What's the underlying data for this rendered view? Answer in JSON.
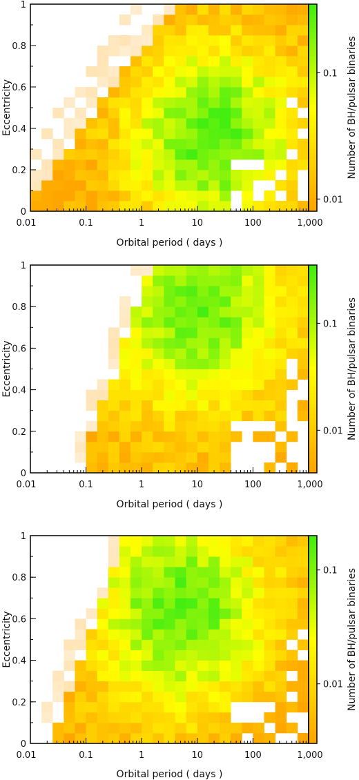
{
  "figure": {
    "xlabel": "Orbital period ( days )",
    "ylabel": "Eccentricity",
    "colorbar_label": "Number of BH/pulsar binaries"
  },
  "colors": {
    "low": "#ffa500",
    "mid": "#ffff00",
    "high": "#44ee11",
    "faint": "#fff6e8"
  },
  "chart_data": [
    {
      "type": "heatmap",
      "x_scale": "log",
      "x_range": [
        0.01,
        1000
      ],
      "x_ticks": [
        0.01,
        0.1,
        1,
        10,
        100,
        1000
      ],
      "x_tick_labels": [
        "0.01",
        "0.1",
        "1",
        "10",
        "100",
        "1,000"
      ],
      "y_range": [
        0,
        1
      ],
      "y_ticks": [
        0,
        0.2,
        0.4,
        0.6,
        0.8,
        1
      ],
      "y_tick_labels": [
        "0",
        "0.2",
        "0.4",
        "0.6",
        "0.8",
        "1"
      ],
      "colorbar_scale": "log",
      "colorbar_range": [
        0.008,
        0.35
      ],
      "colorbar_ticks": [
        0.01,
        0.1
      ],
      "colorbar_tick_labels": [
        "0.01",
        "0.1"
      ],
      "x_bins": 25,
      "y_bins": 20,
      "dx": 0.2,
      "dy": 0.05,
      "onset_log10_period": -1.9,
      "onset_slope": 1.45,
      "peak_log10_period": 1.3,
      "peak_eccentricity": 0.35,
      "peak_value": 0.3,
      "base_value": 0.009,
      "decay_rate": 0.12
    },
    {
      "type": "heatmap",
      "x_scale": "log",
      "x_range": [
        0.01,
        1000
      ],
      "x_ticks": [
        0.01,
        0.1,
        1,
        10,
        100,
        1000
      ],
      "x_tick_labels": [
        "0.01",
        "0.1",
        "1",
        "10",
        "100",
        "1,000"
      ],
      "y_range": [
        0,
        1
      ],
      "y_ticks": [
        0,
        0.2,
        0.4,
        0.6,
        0.8,
        1
      ],
      "y_tick_labels": [
        "0",
        "0.2",
        "0.4",
        "0.6",
        "0.8",
        "1"
      ],
      "colorbar_scale": "log",
      "colorbar_range": [
        0.004,
        0.35
      ],
      "colorbar_ticks": [
        0.01,
        0.1
      ],
      "colorbar_tick_labels": [
        "0.01",
        "0.1"
      ],
      "x_bins": 25,
      "y_bins": 20,
      "dx": 0.2,
      "dy": 0.05,
      "onset_log10_period": -1.0,
      "onset_slope": 3.0,
      "peak_log10_period": 1.0,
      "peak_eccentricity": 0.8,
      "peak_value": 0.25,
      "base_value": 0.006,
      "decay_rate": 0.16
    },
    {
      "type": "heatmap",
      "x_scale": "log",
      "x_range": [
        0.01,
        1000
      ],
      "x_ticks": [
        0.01,
        0.1,
        1,
        10,
        100,
        1000
      ],
      "x_tick_labels": [
        "0.01",
        "0.1",
        "1",
        "10",
        "100",
        "1,000"
      ],
      "y_range": [
        0,
        1
      ],
      "y_ticks": [
        0,
        0.2,
        0.4,
        0.6,
        0.8,
        1
      ],
      "y_tick_labels": [
        "0",
        "0.2",
        "0.4",
        "0.6",
        "0.8",
        "1"
      ],
      "colorbar_scale": "log",
      "colorbar_range": [
        0.003,
        0.2
      ],
      "colorbar_ticks": [
        0.01,
        0.1
      ],
      "colorbar_tick_labels": [
        "0.01",
        "0.1"
      ],
      "x_bins": 25,
      "y_bins": 20,
      "dx": 0.2,
      "dy": 0.05,
      "onset_log10_period": -1.5,
      "onset_slope": 3.0,
      "peak_log10_period": 0.7,
      "peak_eccentricity": 0.65,
      "peak_value": 0.16,
      "base_value": 0.004,
      "decay_rate": 0.16
    }
  ]
}
